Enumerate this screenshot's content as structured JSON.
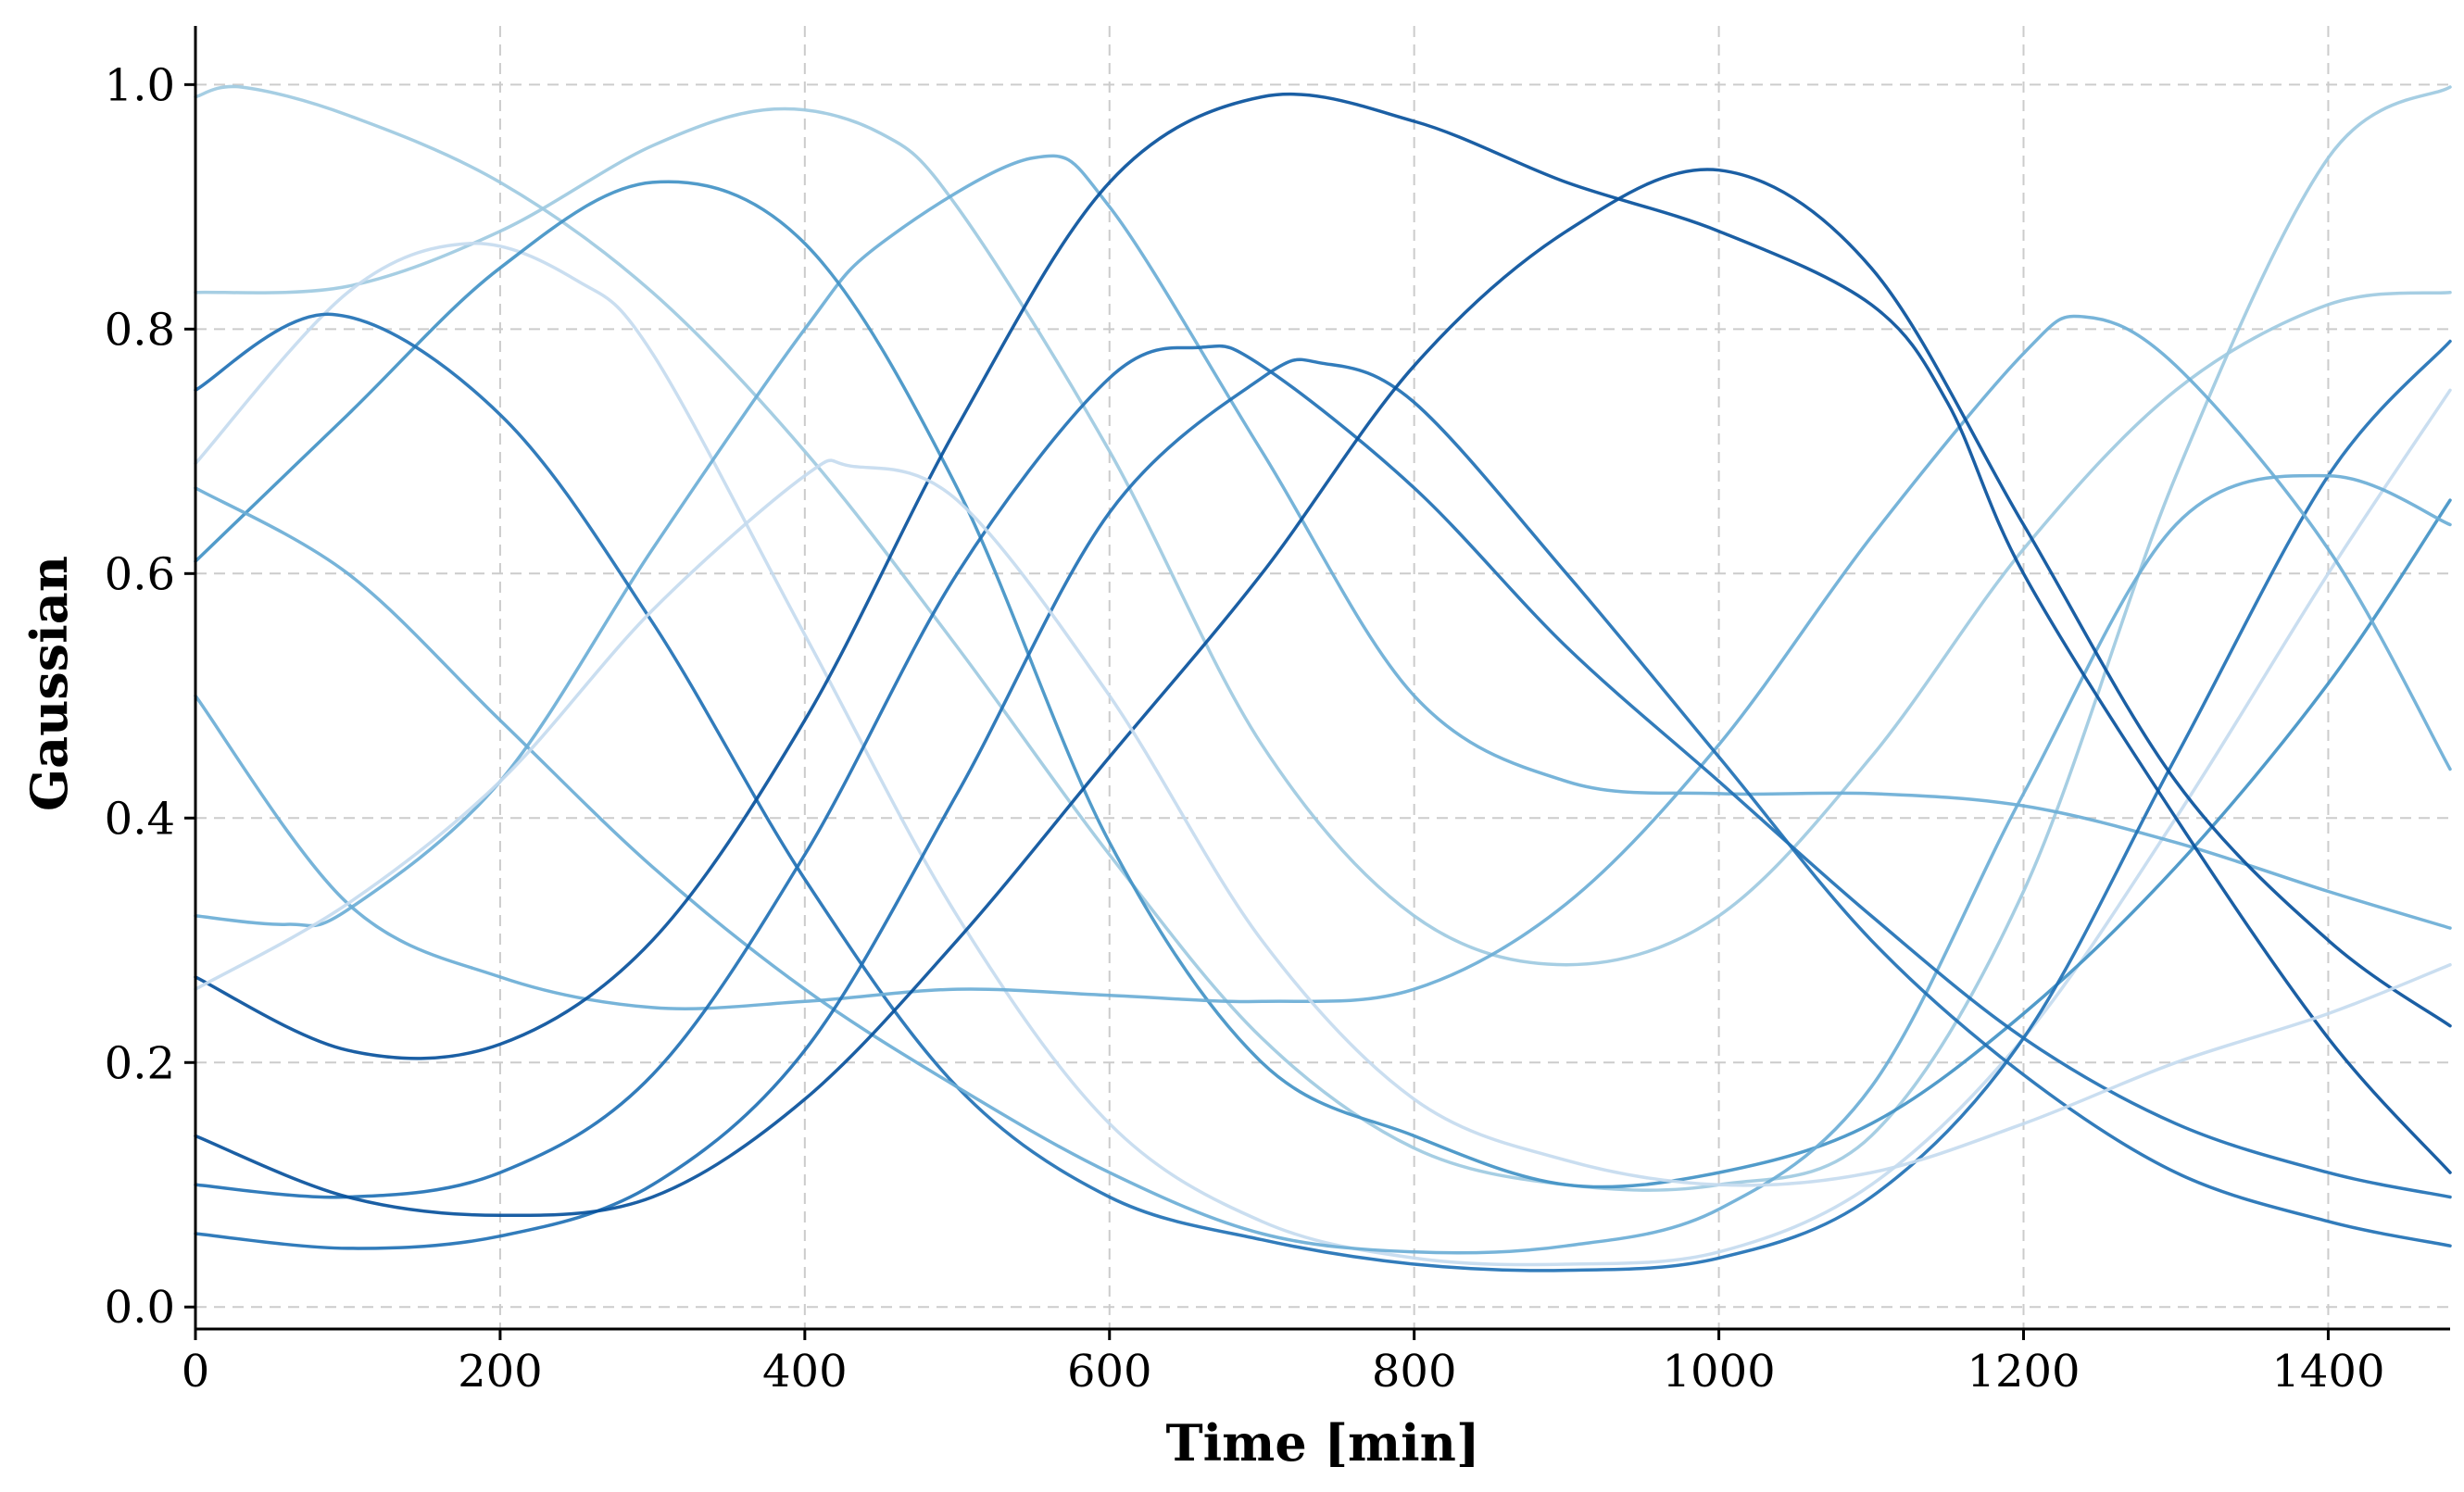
{
  "chart_data": {
    "type": "line",
    "title": "",
    "xlabel": "Time [min]",
    "ylabel": "Gaussian",
    "xlim": [
      0,
      1480
    ],
    "ylim": [
      -0.018,
      1.048
    ],
    "xticks": [
      0,
      200,
      400,
      600,
      800,
      1000,
      1200,
      1400
    ],
    "xtick_labels": [
      "0",
      "200",
      "400",
      "600",
      "800",
      "1000",
      "1200",
      "1400"
    ],
    "yticks": [
      0.0,
      0.2,
      0.4,
      0.6,
      0.8,
      1.0
    ],
    "ytick_labels": [
      "0.0",
      "0.2",
      "0.4",
      "0.6",
      "0.8",
      "1.0"
    ],
    "grid": true,
    "legend": false,
    "series": [
      {
        "color": "#9ecae1",
        "x": [
          0,
          30,
          100,
          200,
          300,
          400,
          500,
          600,
          700,
          800,
          900,
          1000,
          1100,
          1200,
          1300,
          1400,
          1480
        ],
        "y": [
          0.99,
          0.998,
          0.975,
          0.92,
          0.83,
          0.7,
          0.54,
          0.37,
          0.22,
          0.13,
          0.1,
          0.1,
          0.14,
          0.34,
          0.68,
          0.94,
          0.998
        ]
      },
      {
        "color": "#9ecae1",
        "x": [
          0,
          100,
          200,
          300,
          380,
          450,
          500,
          600,
          700,
          800,
          900,
          1000,
          1100,
          1200,
          1300,
          1400,
          1480
        ],
        "y": [
          0.83,
          0.835,
          0.88,
          0.95,
          0.98,
          0.96,
          0.9,
          0.7,
          0.46,
          0.32,
          0.28,
          0.32,
          0.45,
          0.62,
          0.75,
          0.82,
          0.83
        ]
      },
      {
        "color": "#c6dbef",
        "x": [
          0,
          100,
          180,
          250,
          300,
          400,
          500,
          600,
          700,
          800,
          900,
          1000,
          1100,
          1200,
          1300,
          1400,
          1480
        ],
        "y": [
          0.69,
          0.83,
          0.87,
          0.84,
          0.78,
          0.55,
          0.32,
          0.15,
          0.07,
          0.04,
          0.035,
          0.045,
          0.1,
          0.22,
          0.4,
          0.6,
          0.75
        ]
      },
      {
        "color": "#6baed6",
        "x": [
          0,
          60,
          100,
          200,
          300,
          400,
          450,
          550,
          600,
          700,
          800,
          900,
          1000,
          1100,
          1200,
          1300,
          1400,
          1480
        ],
        "y": [
          0.32,
          0.313,
          0.325,
          0.43,
          0.62,
          0.8,
          0.87,
          0.94,
          0.9,
          0.7,
          0.5,
          0.43,
          0.42,
          0.42,
          0.41,
          0.38,
          0.34,
          0.31
        ]
      },
      {
        "color": "#4292c6",
        "x": [
          0,
          100,
          200,
          300,
          400,
          500,
          600,
          700,
          800,
          900,
          1000,
          1100,
          1200,
          1300,
          1400,
          1480
        ],
        "y": [
          0.61,
          0.73,
          0.85,
          0.92,
          0.87,
          0.67,
          0.38,
          0.2,
          0.14,
          0.1,
          0.11,
          0.15,
          0.24,
          0.36,
          0.51,
          0.66
        ]
      },
      {
        "color": "#2171b5",
        "x": [
          0,
          90,
          200,
          300,
          400,
          500,
          600,
          700,
          800,
          900,
          1000,
          1100,
          1200,
          1300,
          1400,
          1480
        ],
        "y": [
          0.75,
          0.812,
          0.73,
          0.56,
          0.35,
          0.18,
          0.09,
          0.055,
          0.035,
          0.03,
          0.04,
          0.09,
          0.22,
          0.45,
          0.68,
          0.79
        ]
      },
      {
        "color": "#6baed6",
        "x": [
          0,
          100,
          200,
          300,
          400,
          500,
          600,
          700,
          800,
          900,
          1000,
          1100,
          1200,
          1300,
          1400,
          1480
        ],
        "y": [
          0.67,
          0.6,
          0.48,
          0.36,
          0.26,
          0.18,
          0.11,
          0.06,
          0.045,
          0.05,
          0.08,
          0.18,
          0.42,
          0.64,
          0.68,
          0.64
        ]
      },
      {
        "color": "#6baed6",
        "x": [
          0,
          100,
          200,
          300,
          400,
          500,
          600,
          700,
          800,
          900,
          1000,
          1100,
          1200,
          1240,
          1300,
          1400,
          1480
        ],
        "y": [
          0.5,
          0.33,
          0.27,
          0.245,
          0.25,
          0.26,
          0.255,
          0.25,
          0.26,
          0.33,
          0.46,
          0.63,
          0.78,
          0.81,
          0.77,
          0.62,
          0.44
        ]
      },
      {
        "color": "#2171b5",
        "x": [
          0,
          100,
          200,
          300,
          400,
          500,
          600,
          660,
          700,
          800,
          900,
          1000,
          1100,
          1200,
          1300,
          1400,
          1480
        ],
        "y": [
          0.1,
          0.09,
          0.11,
          0.19,
          0.37,
          0.6,
          0.76,
          0.785,
          0.77,
          0.67,
          0.54,
          0.43,
          0.32,
          0.22,
          0.15,
          0.11,
          0.09
        ]
      },
      {
        "color": "#2171b5",
        "x": [
          0,
          100,
          200,
          300,
          400,
          500,
          600,
          700,
          740,
          800,
          900,
          1000,
          1100,
          1200,
          1300,
          1400,
          1480
        ],
        "y": [
          0.06,
          0.048,
          0.058,
          0.1,
          0.21,
          0.42,
          0.65,
          0.76,
          0.772,
          0.74,
          0.6,
          0.45,
          0.3,
          0.19,
          0.11,
          0.07,
          0.05
        ]
      },
      {
        "color": "#08519c",
        "x": [
          0,
          100,
          200,
          300,
          400,
          500,
          600,
          700,
          800,
          900,
          1000,
          1100,
          1150,
          1200,
          1300,
          1400,
          1480
        ],
        "y": [
          0.27,
          0.21,
          0.215,
          0.3,
          0.48,
          0.72,
          0.92,
          0.99,
          0.97,
          0.92,
          0.88,
          0.82,
          0.74,
          0.6,
          0.4,
          0.22,
          0.11
        ]
      },
      {
        "color": "#08519c",
        "x": [
          0,
          100,
          200,
          300,
          400,
          500,
          600,
          700,
          800,
          900,
          1000,
          1100,
          1200,
          1300,
          1400,
          1480
        ],
        "y": [
          0.14,
          0.09,
          0.075,
          0.09,
          0.17,
          0.3,
          0.45,
          0.6,
          0.77,
          0.88,
          0.93,
          0.85,
          0.64,
          0.43,
          0.3,
          0.23
        ]
      },
      {
        "color": "#c6dbef",
        "x": [
          0,
          100,
          200,
          300,
          400,
          430,
          500,
          600,
          700,
          800,
          900,
          1000,
          1100,
          1200,
          1300,
          1400,
          1480
        ],
        "y": [
          0.26,
          0.33,
          0.43,
          0.57,
          0.68,
          0.688,
          0.66,
          0.5,
          0.3,
          0.17,
          0.12,
          0.1,
          0.11,
          0.15,
          0.2,
          0.24,
          0.28
        ]
      }
    ]
  }
}
